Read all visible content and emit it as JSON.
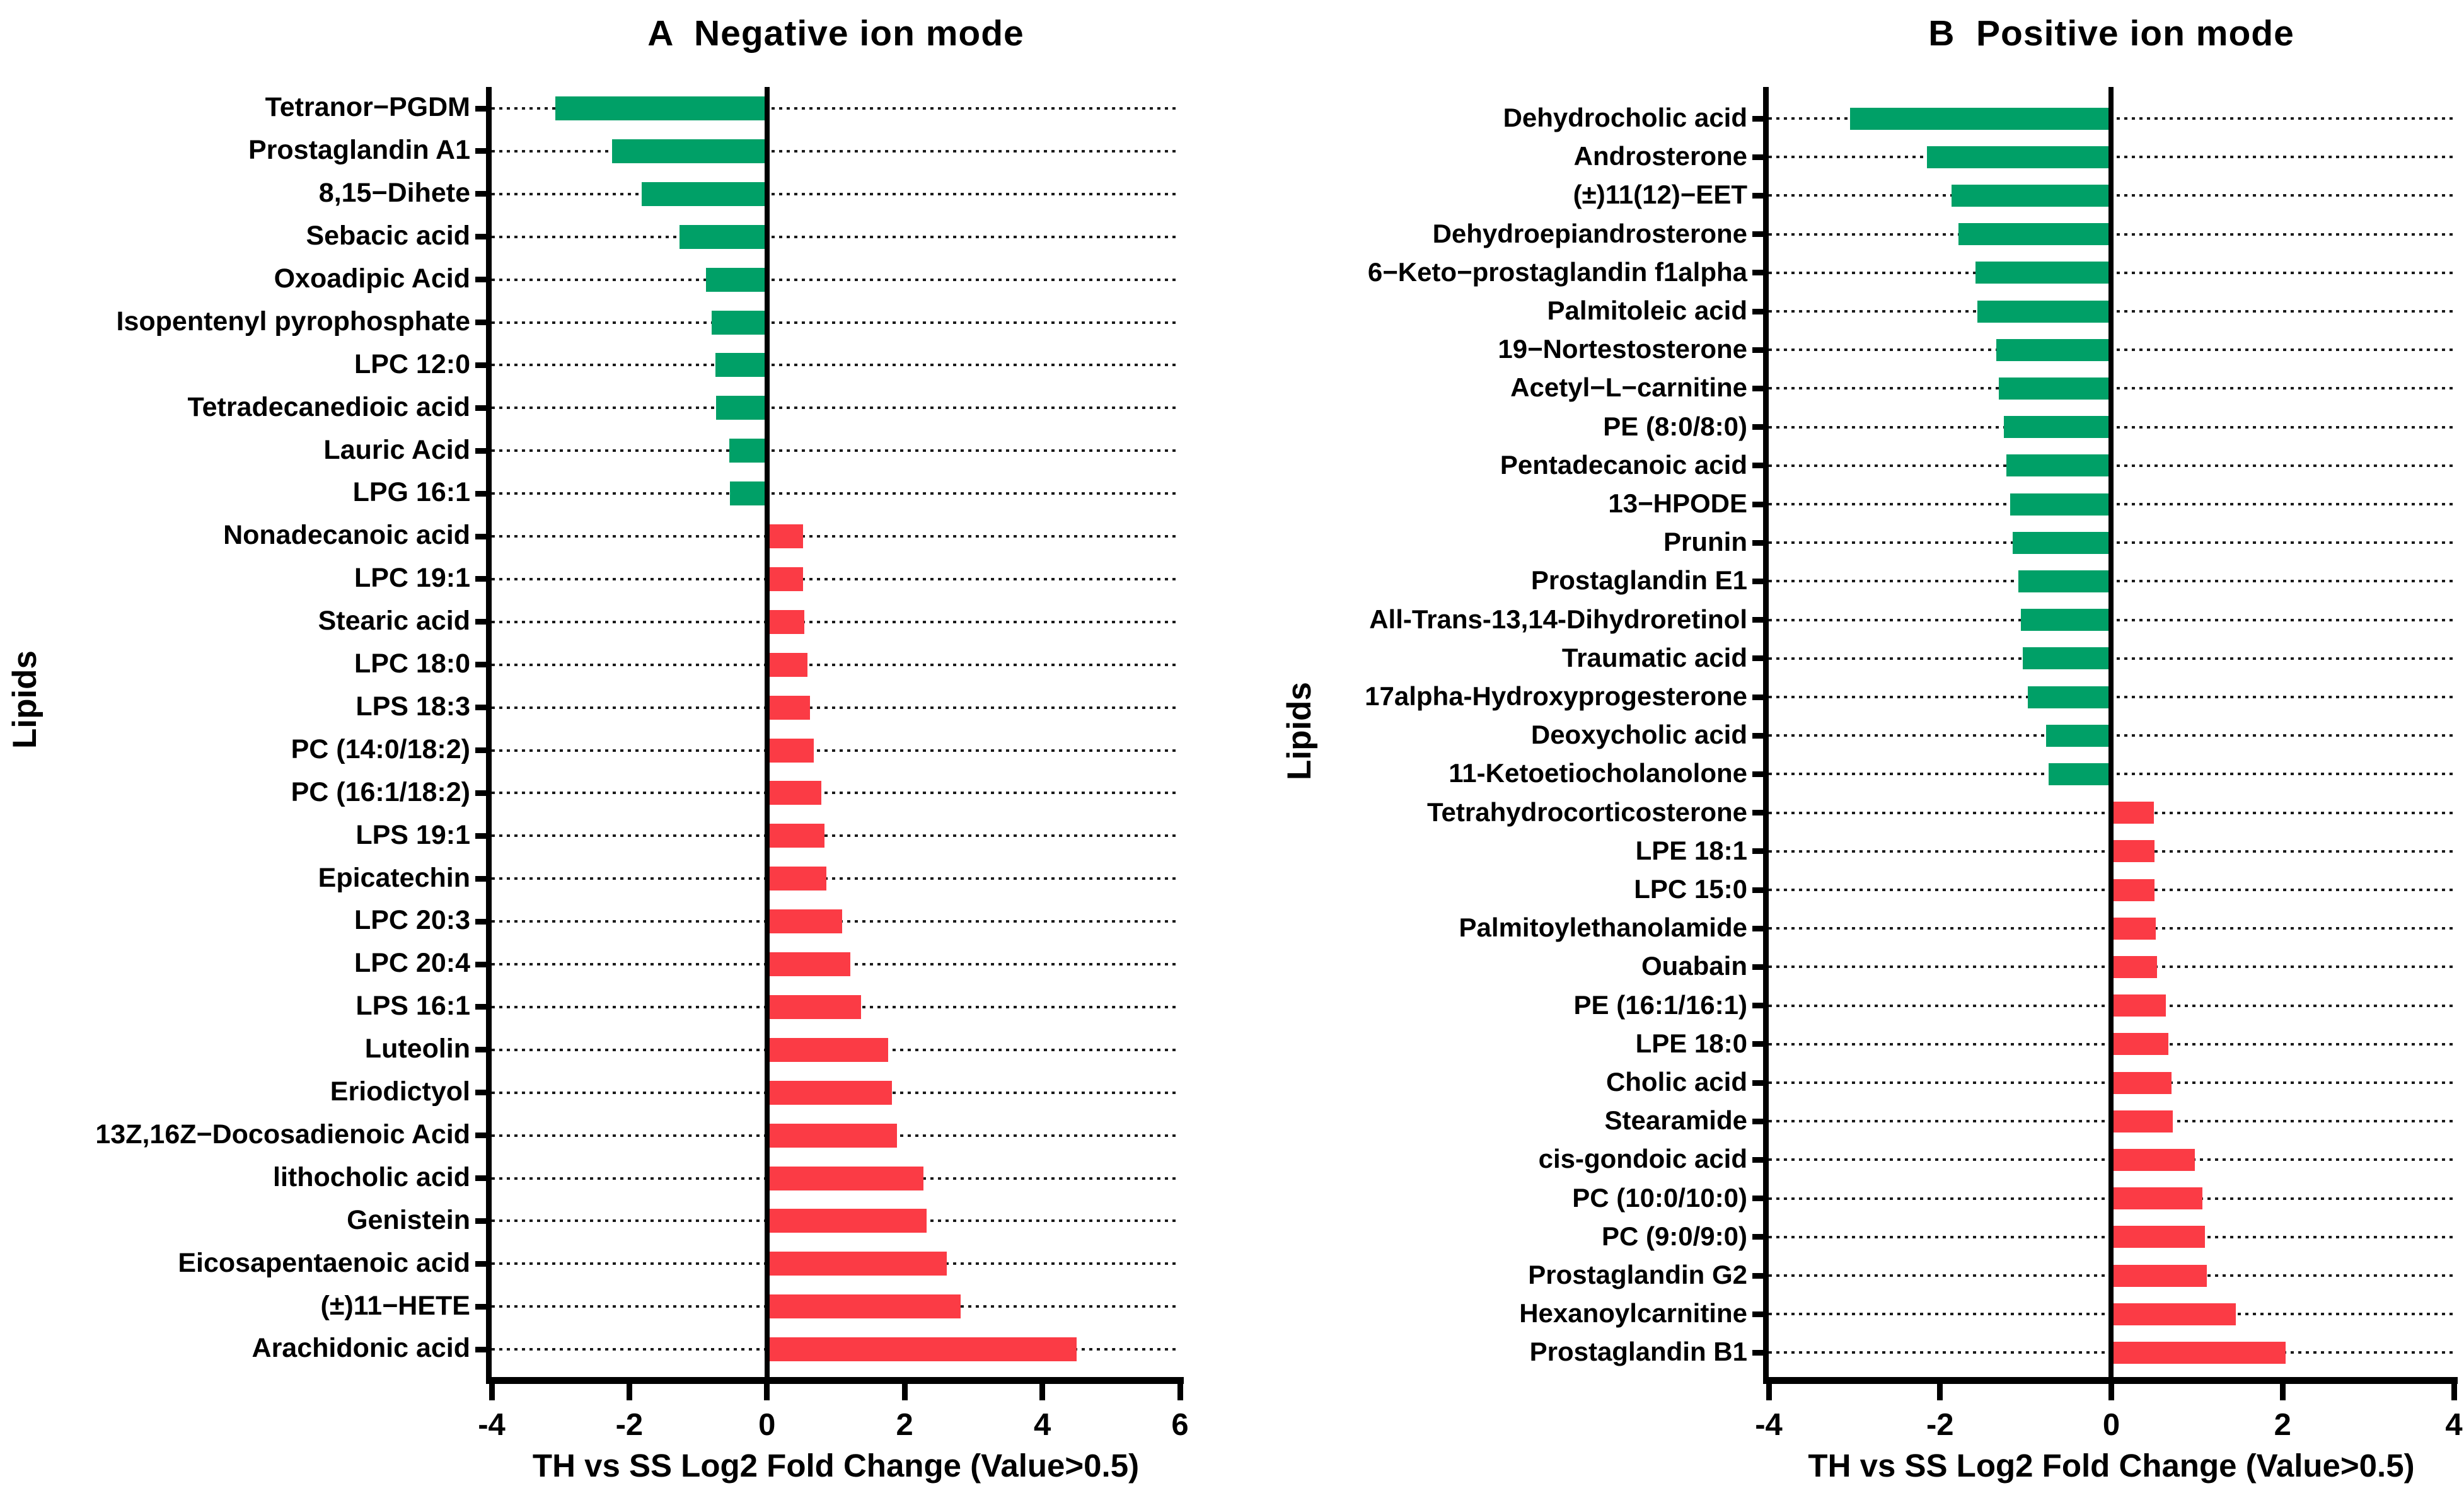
{
  "figure": {
    "background": "#ffffff",
    "negative_bar_color": "#00A067",
    "positive_bar_color": "#FB3B45",
    "axis_color": "#000000",
    "leader_line_style": "dotted"
  },
  "chart_data": [
    {
      "id": "A",
      "type": "bar",
      "orientation": "horizontal",
      "title": "A  Negative ion mode",
      "xlabel": "TH vs SS Log2 Fold Change (Value>0.5)",
      "ylabel": "Lipids",
      "xlim": [
        -4,
        6
      ],
      "xticks": [
        -4,
        -2,
        0,
        2,
        4,
        6
      ],
      "grid": "dotted horizontal leader per category",
      "legend": "none",
      "negative_color": "#00A067",
      "positive_color": "#FB3B45",
      "categories": [
        "Tetranor−PGDM",
        "Prostaglandin A1",
        "8,15−Dihete",
        "Sebacic acid",
        "Oxoadipic Acid",
        "Isopentenyl pyrophosphate",
        "LPC 12:0",
        "Tetradecanedioic acid",
        "Lauric Acid",
        "LPG 16:1",
        "Nonadecanoic acid",
        "LPC 19:1",
        "Stearic acid",
        "LPC 18:0",
        "LPS 18:3",
        "PC (14:0/18:2)",
        "PC (16:1/18:2)",
        "LPS 19:1",
        "Epicatechin",
        "LPC 20:3",
        "LPC 20:4",
        "LPS 16:1",
        "Luteolin",
        "Eriodictyol",
        "13Z,16Z−Docosadienoic Acid",
        "lithocholic acid",
        "Genistein",
        "Eicosapentaenoic acid",
        "(±)11−HETE",
        "Arachidonic acid"
      ],
      "values": [
        -3.08,
        -2.25,
        -1.82,
        -1.27,
        -0.89,
        -0.81,
        -0.75,
        -0.74,
        -0.55,
        -0.54,
        0.52,
        0.52,
        0.54,
        0.59,
        0.62,
        0.68,
        0.79,
        0.83,
        0.86,
        1.09,
        1.21,
        1.36,
        1.76,
        1.81,
        1.89,
        2.27,
        2.32,
        2.61,
        2.81,
        4.5
      ]
    },
    {
      "id": "B",
      "type": "bar",
      "orientation": "horizontal",
      "title": "B  Positive ion mode",
      "xlabel": "TH vs SS Log2 Fold Change (Value>0.5)",
      "ylabel": "Lipids",
      "xlim": [
        -4,
        4
      ],
      "xticks": [
        -4,
        -2,
        0,
        2,
        4
      ],
      "grid": "dotted horizontal leader per category",
      "legend": "none",
      "negative_color": "#00A067",
      "positive_color": "#FB3B45",
      "categories": [
        "Dehydrocholic acid",
        "Androsterone",
        "(±)11(12)−EET",
        "Dehydroepiandrosterone",
        "6−Keto−prostaglandin f1alpha",
        "Palmitoleic acid",
        "19−Nortestosterone",
        "Acetyl−L−carnitine",
        "PE (8:0/8:0)",
        "Pentadecanoic acid",
        "13−HPODE",
        "Prunin",
        "Prostaglandin E1",
        "All-Trans-13,14-Dihydroretinol",
        "Traumatic acid",
        "17alpha-Hydroxyprogesterone",
        "Deoxycholic acid",
        "11-Ketoetiocholanolone",
        "Tetrahydrocorticosterone",
        "LPE 18:1",
        "LPC 15:0",
        "Palmitoylethanolamide",
        "Ouabain",
        "PE (16:1/16:1)",
        "LPE 18:0",
        "Cholic acid",
        "Stearamide",
        "cis-gondoic acid",
        "PC (10:0/10:0)",
        "PC (9:0/9:0)",
        "Prostaglandin G2",
        "Hexanoylcarnitine",
        "Prostaglandin B1"
      ],
      "values": [
        -3.05,
        -2.15,
        -1.86,
        -1.78,
        -1.58,
        -1.56,
        -1.34,
        -1.31,
        -1.25,
        -1.22,
        -1.18,
        -1.15,
        -1.08,
        -1.05,
        -1.03,
        -0.97,
        -0.76,
        -0.73,
        0.5,
        0.51,
        0.51,
        0.52,
        0.54,
        0.64,
        0.67,
        0.71,
        0.72,
        0.98,
        1.07,
        1.1,
        1.12,
        1.46,
        2.04
      ]
    }
  ]
}
